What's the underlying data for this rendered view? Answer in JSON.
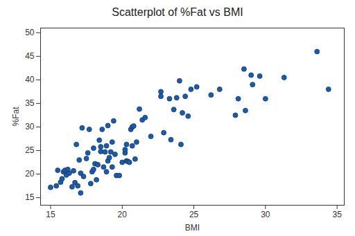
{
  "chart_data": {
    "type": "scatter",
    "title": "Scatterplot of %Fat vs BMI",
    "xlabel": "BMI",
    "ylabel": "%Fat",
    "x": [
      15.0,
      15.4,
      15.5,
      15.7,
      15.8,
      15.9,
      16.0,
      16.1,
      16.2,
      16.3,
      16.5,
      16.6,
      16.7,
      16.8,
      16.9,
      17.0,
      17.1,
      17.1,
      17.2,
      17.3,
      17.5,
      17.6,
      17.7,
      17.8,
      17.9,
      18.0,
      18.0,
      18.1,
      18.2,
      18.3,
      18.4,
      18.5,
      18.5,
      18.6,
      18.7,
      18.8,
      18.9,
      18.9,
      19.0,
      19.0,
      19.1,
      19.2,
      19.3,
      19.3,
      19.4,
      19.5,
      19.6,
      19.8,
      20.0,
      20.2,
      20.2,
      20.3,
      20.3,
      20.4,
      20.5,
      20.6,
      20.7,
      20.7,
      20.8,
      20.9,
      21.0,
      21.2,
      21.4,
      21.6,
      22.0,
      22.7,
      22.7,
      22.9,
      23.3,
      23.4,
      23.6,
      23.8,
      24.0,
      24.1,
      24.2,
      24.4,
      24.6,
      24.8,
      25.2,
      26.2,
      26.8,
      27.9,
      28.1,
      28.5,
      28.6,
      29.0,
      29.1,
      29.6,
      30.0,
      31.3,
      33.6,
      34.4
    ],
    "values": [
      17.2,
      17.5,
      20.8,
      18.3,
      19.0,
      20.5,
      20.8,
      19.8,
      21.0,
      20.2,
      17.3,
      20.7,
      18.2,
      26.3,
      17.5,
      23.0,
      16.0,
      20.2,
      29.8,
      19.5,
      23.3,
      24.5,
      29.5,
      18.0,
      20.5,
      21.0,
      25.5,
      22.2,
      18.8,
      22.0,
      27.2,
      24.8,
      25.8,
      29.5,
      21.5,
      24.7,
      20.5,
      26.0,
      30.3,
      22.8,
      23.5,
      24.7,
      26.8,
      21.5,
      31.3,
      24.2,
      19.7,
      19.7,
      22.5,
      24.5,
      25.2,
      26.3,
      22.8,
      22.7,
      22.5,
      29.5,
      26.0,
      30.0,
      30.2,
      23.2,
      26.8,
      33.8,
      31.5,
      32.0,
      28.0,
      37.5,
      36.5,
      28.8,
      36.0,
      27.3,
      33.7,
      36.2,
      39.8,
      26.3,
      33.0,
      36.5,
      32.3,
      38.0,
      38.5,
      36.8,
      38.0,
      32.5,
      36.0,
      42.3,
      33.5,
      41.0,
      39.0,
      40.8,
      36.0,
      40.5,
      46.0,
      38.0
    ],
    "color": "#1f5aa6",
    "marker": "circle",
    "xlim": [
      14.3,
      35.5
    ],
    "ylim": [
      13.4,
      51
    ],
    "xticks": [
      15,
      20,
      25,
      30,
      35
    ],
    "yticks": [
      15,
      20,
      25,
      30,
      35,
      40,
      45,
      50
    ],
    "grid": false
  }
}
